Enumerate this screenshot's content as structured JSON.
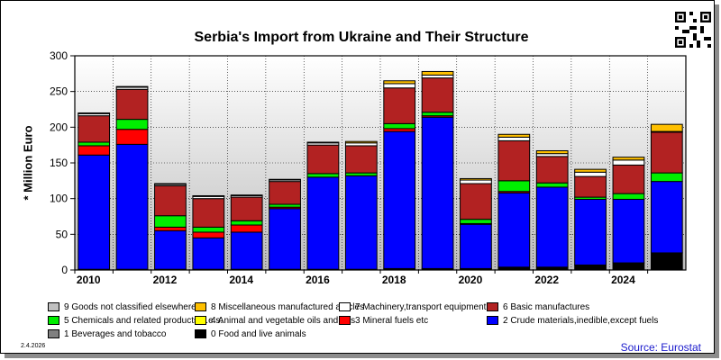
{
  "chart_data": {
    "type": "bar",
    "stacked": true,
    "title": "Serbia's Import from Ukraine and Their Structure",
    "ylabel": "* Million Euro",
    "xlabel": "",
    "ylim": [
      0,
      300
    ],
    "yticks": [
      0,
      50,
      100,
      150,
      200,
      250,
      300
    ],
    "grid": true,
    "legend_position": "bottom",
    "categories": [
      "2010",
      "2011",
      "2012",
      "2013",
      "2014",
      "2015",
      "2016",
      "2017",
      "2018",
      "2019",
      "2020",
      "2021",
      "2022",
      "2023",
      "2024",
      "2025"
    ],
    "x_tick_labels": [
      "2010",
      "",
      "2012",
      "",
      "2014",
      "",
      "2016",
      "",
      "2018",
      "",
      "2020",
      "",
      "2022",
      "",
      "2024",
      ""
    ],
    "series": [
      {
        "name": "0 Food and live animals",
        "color": "#000000",
        "values": [
          1,
          1,
          1,
          1,
          1,
          1,
          1,
          1,
          2,
          2,
          2,
          4,
          4,
          7,
          10,
          24
        ]
      },
      {
        "name": "1 Beverages and tobacco",
        "color": "#808080",
        "values": [
          0,
          0,
          0,
          0,
          0,
          0,
          0,
          0,
          0,
          0,
          0,
          0,
          0,
          0,
          0,
          0
        ]
      },
      {
        "name": "2 Crude materials,inedible,except fuels",
        "color": "#0000ff",
        "values": [
          160,
          175,
          54,
          44,
          52,
          85,
          129,
          131,
          192,
          212,
          62,
          104,
          112,
          92,
          89,
          100
        ]
      },
      {
        "name": "3 Mineral fuels etc",
        "color": "#ff0000",
        "values": [
          13,
          21,
          5,
          8,
          10,
          2,
          0,
          0,
          4,
          2,
          1,
          2,
          0,
          0,
          0,
          0
        ]
      },
      {
        "name": "4 Animal and vegetable oils and fats",
        "color": "#ffff00",
        "values": [
          0,
          0,
          0,
          0,
          0,
          0,
          0,
          0,
          0,
          0,
          0,
          0,
          0,
          0,
          0,
          0
        ]
      },
      {
        "name": "5 Chemicals and related products,n.e.s.",
        "color": "#00ee00",
        "values": [
          5,
          14,
          16,
          7,
          6,
          4,
          5,
          4,
          7,
          5,
          6,
          15,
          6,
          3,
          8,
          12
        ]
      },
      {
        "name": "6 Basic manufactures",
        "color": "#b22222",
        "values": [
          37,
          42,
          42,
          40,
          33,
          32,
          40,
          38,
          50,
          48,
          50,
          56,
          37,
          29,
          40,
          57
        ]
      },
      {
        "name": "7 Machinery,transport equipment",
        "color": "#ffffff",
        "values": [
          3,
          3,
          2,
          3,
          2,
          2,
          3,
          4,
          6,
          4,
          5,
          5,
          4,
          6,
          7,
          1
        ]
      },
      {
        "name": "8 Miscellaneous manufactured articles",
        "color": "#ffc000",
        "values": [
          1,
          1,
          1,
          1,
          1,
          1,
          1,
          2,
          4,
          5,
          2,
          4,
          4,
          4,
          4,
          10
        ]
      },
      {
        "name": "9 Goods not classified elsewhere",
        "color": "#c0c0c0",
        "values": [
          0,
          0,
          0,
          0,
          0,
          0,
          0,
          0,
          0,
          0,
          0,
          0,
          0,
          0,
          0,
          0
        ]
      }
    ]
  },
  "legend_order": [
    9,
    8,
    7,
    6,
    5,
    4,
    3,
    2,
    1,
    0
  ],
  "footer": {
    "date": "2.4.2026",
    "source": "Source: Eurostat"
  },
  "qr_icon": "qr-code-icon"
}
